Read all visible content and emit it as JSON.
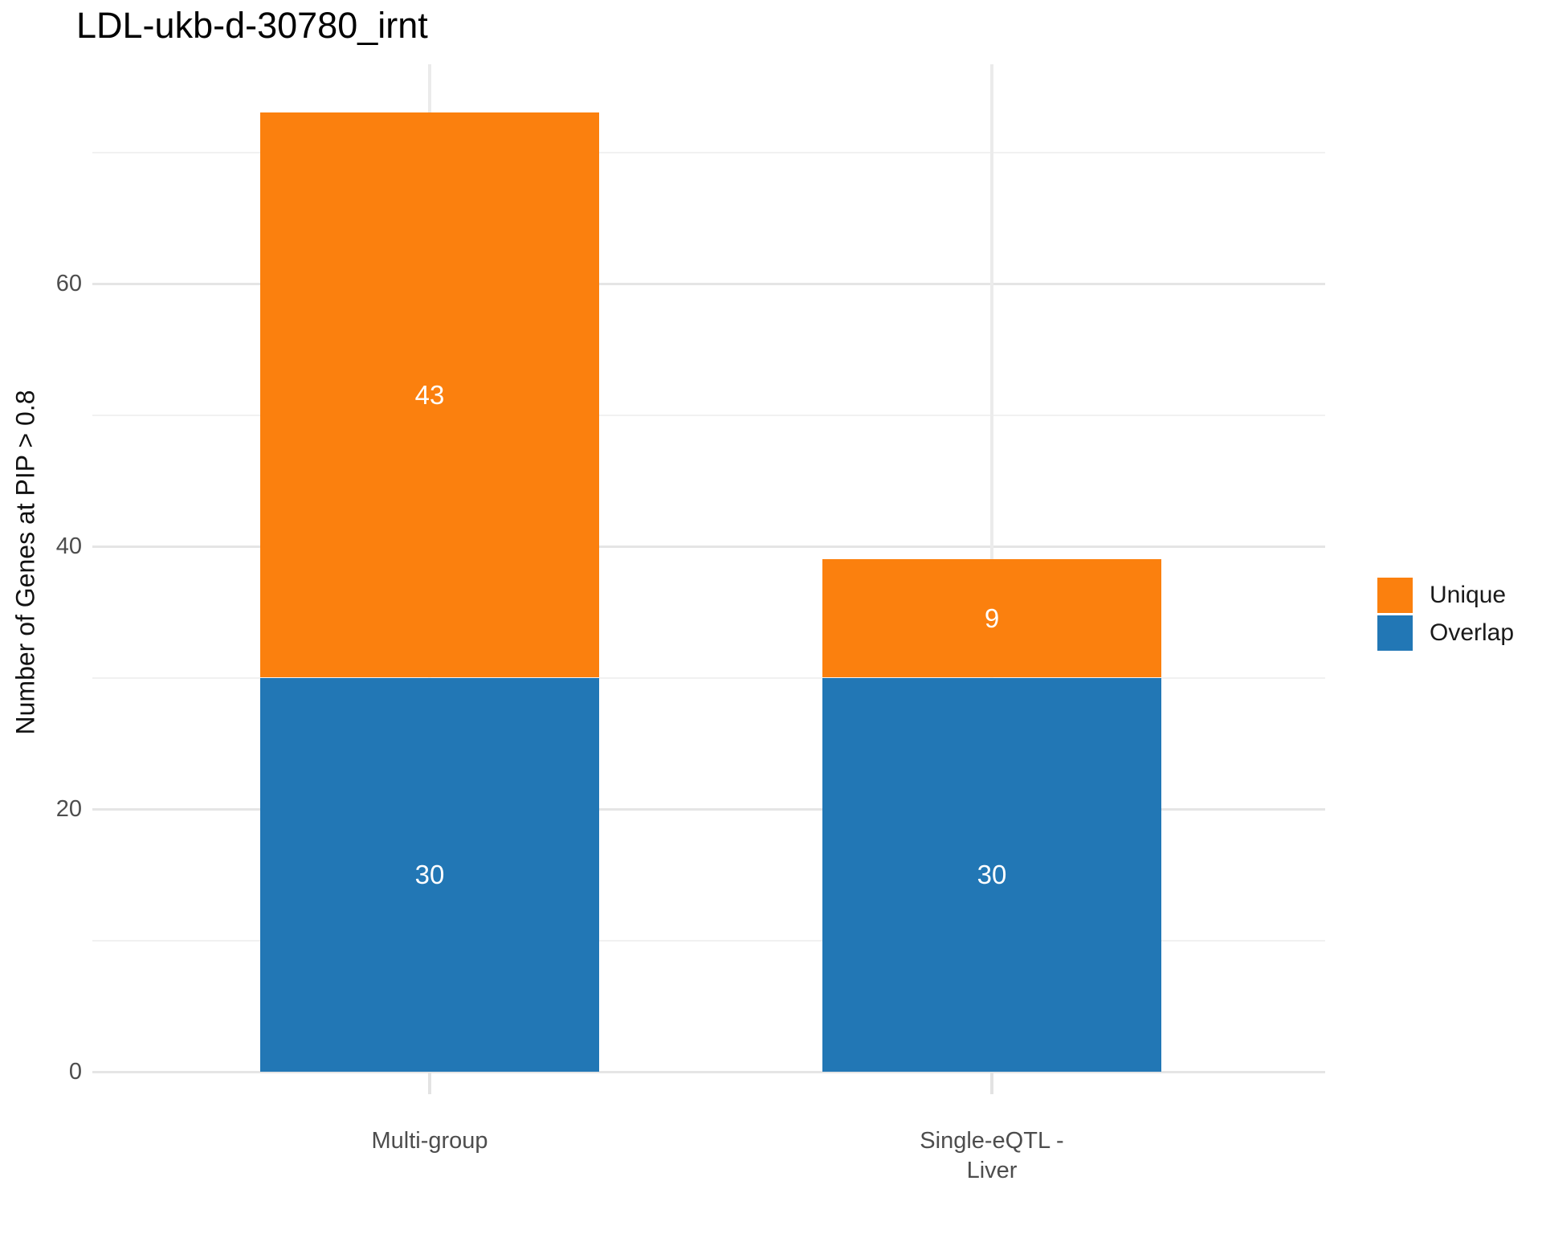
{
  "title": "LDL-ukb-d-30780_irnt",
  "chart_data": {
    "type": "bar",
    "stacked": true,
    "title": "LDL-ukb-d-30780_irnt",
    "categories": [
      "Multi-group",
      "Single-eQTL - Liver"
    ],
    "x_tick_labels": [
      "Multi-group",
      "Single-eQTL -\nLiver"
    ],
    "series": [
      {
        "name": "Overlap",
        "color": "#2277b5",
        "values": [
          30,
          30
        ]
      },
      {
        "name": "Unique",
        "color": "#fb800e",
        "values": [
          43,
          9
        ]
      }
    ],
    "totals": [
      73,
      39
    ],
    "xlabel": "",
    "ylabel": "Number of Genes at PIP > 0.8",
    "ylim": [
      0,
      76
    ],
    "y_major_ticks": [
      0,
      20,
      40,
      60
    ],
    "y_minor_ticks": [
      10,
      30,
      50,
      70
    ],
    "grid": true,
    "value_label_color": "#ffffff",
    "legend": {
      "position": "right",
      "entries": [
        {
          "label": "Unique",
          "color": "#fb800e"
        },
        {
          "label": "Overlap",
          "color": "#2277b5"
        }
      ]
    }
  }
}
